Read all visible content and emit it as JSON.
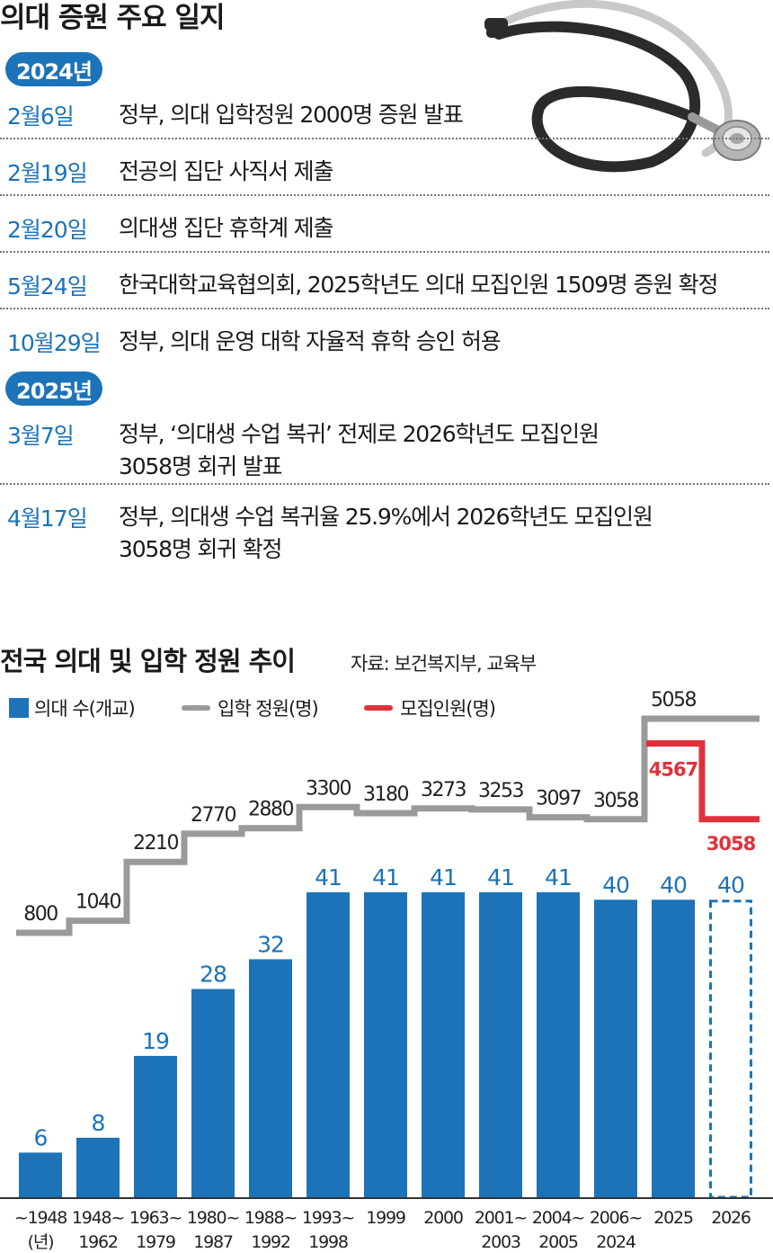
{
  "header": {
    "title": "의대 증원 주요 일지"
  },
  "timeline": [
    {
      "year": "2024년",
      "events": [
        {
          "date": "2월6일",
          "lines": [
            "정부, 의대 입학정원 2000명 증원 발표"
          ]
        },
        {
          "date": "2월19일",
          "lines": [
            "전공의 집단 사직서 제출"
          ]
        },
        {
          "date": "2월20일",
          "lines": [
            "의대생 집단 휴학계 제출"
          ]
        },
        {
          "date": "5월24일",
          "lines": [
            "한국대학교육협의회, 2025학년도 의대 모집인원 1509명 증원 확정"
          ]
        },
        {
          "date": "10월29일",
          "lines": [
            "정부, 의대 운영 대학 자율적 휴학 승인 허용"
          ]
        }
      ]
    },
    {
      "year": "2025년",
      "events": [
        {
          "date": "3월7일",
          "lines": [
            "정부, ‘의대생 수업 복귀’ 전제로 2026학년도 모집인원",
            "3058명 회귀 발표"
          ]
        },
        {
          "date": "4월17일",
          "lines": [
            "정부, 의대생 수업 복귀율 25.9%에서 2026학년도 모집인원",
            "3058명 회귀 확정"
          ]
        }
      ]
    }
  ],
  "chart_data": {
    "type": "bar",
    "title": "전국 의대 및 입학 정원 추이",
    "source": "자료: 보건복지부, 교육부",
    "legend": {
      "bars": "의대 수(개교)",
      "quota": "입학 정원(명)",
      "recruit": "모집인원(명)",
      "placement": "top-left"
    },
    "categories": [
      [
        "~1948",
        "(년)"
      ],
      [
        "1948~",
        "1962"
      ],
      [
        "1963~",
        "1979"
      ],
      [
        "1980~",
        "1987"
      ],
      [
        "1988~",
        "1992"
      ],
      [
        "1993~",
        "1998"
      ],
      [
        "1999"
      ],
      [
        "2000"
      ],
      [
        "2001~",
        "2003"
      ],
      [
        "2004~",
        "2005"
      ],
      [
        "2006~",
        "2024"
      ],
      [
        "2025"
      ],
      [
        "2026"
      ]
    ],
    "series": [
      {
        "name": "의대 수(개교)",
        "kind": "bar",
        "values": [
          6,
          8,
          19,
          28,
          32,
          41,
          41,
          41,
          41,
          41,
          40,
          40,
          40
        ],
        "projected": [
          false,
          false,
          false,
          false,
          false,
          false,
          false,
          false,
          false,
          false,
          false,
          false,
          true
        ]
      },
      {
        "name": "입학 정원(명)",
        "kind": "step",
        "values": [
          800,
          1040,
          2210,
          2770,
          2880,
          3300,
          3180,
          3273,
          3253,
          3097,
          3058,
          5058,
          5058
        ],
        "labels": [
          "800",
          "1040",
          "2210",
          "2770",
          "2880",
          "3300",
          "3180",
          "3273",
          "3253",
          "3097",
          "3058",
          "5058",
          null
        ]
      },
      {
        "name": "모집인원(명)",
        "kind": "step",
        "values": [
          null,
          null,
          null,
          null,
          null,
          null,
          null,
          null,
          null,
          null,
          null,
          4567,
          3058
        ],
        "labels": [
          null,
          null,
          null,
          null,
          null,
          null,
          null,
          null,
          null,
          null,
          null,
          "4567",
          "3058"
        ]
      }
    ],
    "colors": {
      "bar": "#1c73b8",
      "quota": "#9a9a9a",
      "recruit": "#e0313b"
    },
    "ylim_bars": [
      0,
      41
    ],
    "ylim_quota": [
      800,
      5058
    ]
  }
}
